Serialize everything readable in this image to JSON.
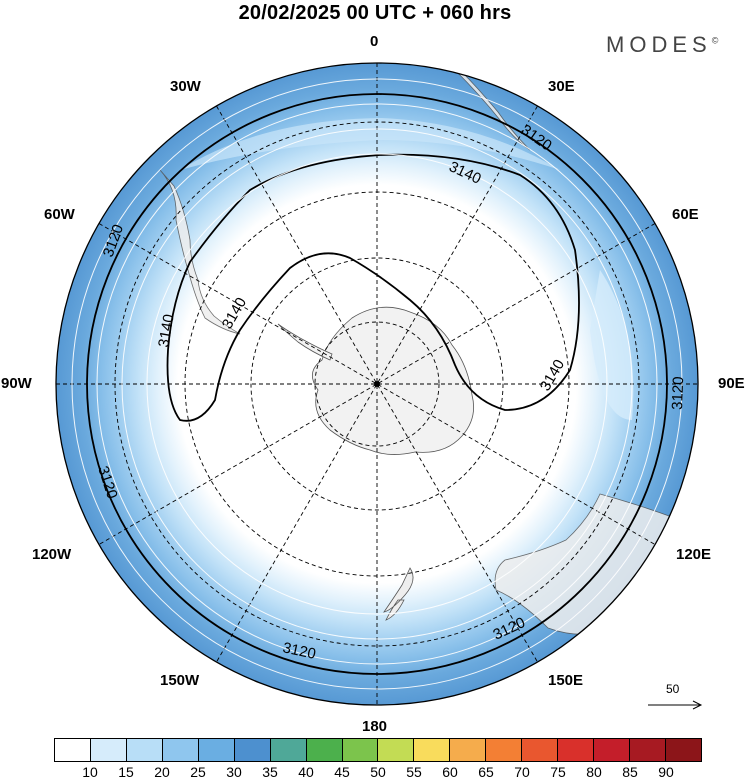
{
  "header": {
    "title": "20/02/2025  00 UTC  + 060 hrs",
    "brand": "MODES",
    "brand_mark": "©"
  },
  "map": {
    "projection": "south-polar-stereographic",
    "longitude_labels": {
      "top": "0",
      "right": "90E",
      "bottom": "180",
      "left": "90W",
      "l30e": "30E",
      "l60e": "60E",
      "l120e": "120E",
      "l150e": "150E",
      "l30w": "30W",
      "l60w": "60W",
      "l120w": "120W",
      "l150w": "150W"
    },
    "contour_labels": {
      "a": "3120",
      "b": "3140",
      "c": "3140",
      "d": "3140",
      "e": "3140",
      "f": "3120",
      "g": "3120",
      "h": "3120",
      "i": "3120",
      "j": "3120"
    },
    "reference_vector": "50",
    "colors": {
      "land": "#f2f2f2",
      "coast": "#555555"
    }
  },
  "colorbar": {
    "ticks": [
      "10",
      "15",
      "20",
      "25",
      "30",
      "35",
      "40",
      "45",
      "50",
      "55",
      "60",
      "65",
      "70",
      "75",
      "80",
      "85",
      "90"
    ],
    "colors": [
      "#ffffff",
      "#d6ecfb",
      "#b8def7",
      "#8fc6ee",
      "#6aaee2",
      "#4d90cf",
      "#4fa898",
      "#4cb04c",
      "#7cc44c",
      "#c3dc54",
      "#f9dc5c",
      "#f5ac4c",
      "#f37f34",
      "#e9572f",
      "#d9302b",
      "#c41e2a",
      "#a71a22",
      "#8c1519"
    ]
  }
}
